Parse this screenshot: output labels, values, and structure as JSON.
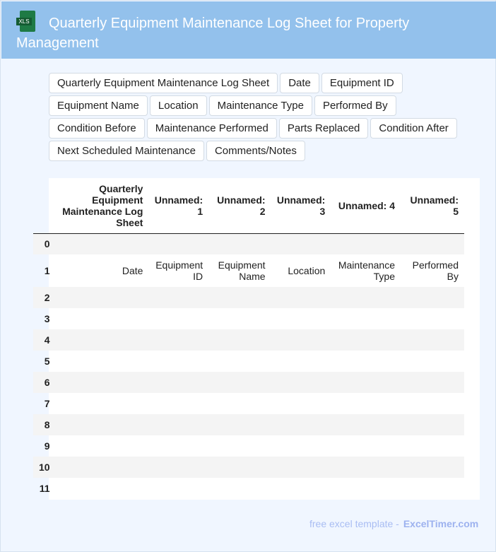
{
  "header": {
    "title": "Quarterly Equipment Maintenance Log Sheet for Property Management",
    "icon": "xls-file-icon",
    "icon_label": "XLS"
  },
  "tags": [
    "Quarterly Equipment Maintenance Log Sheet",
    "Date",
    "Equipment ID",
    "Equipment Name",
    "Location",
    "Maintenance Type",
    "Performed By",
    "Condition Before",
    "Maintenance Performed",
    "Parts Replaced",
    "Condition After",
    "Next Scheduled Maintenance",
    "Comments/Notes"
  ],
  "table": {
    "columns": [
      "",
      "Quarterly Equipment Maintenance Log Sheet",
      "Unnamed: 1",
      "Unnamed: 2",
      "Unnamed: 3",
      "Unnamed: 4",
      "Unnamed: 5"
    ],
    "rows": [
      [
        "0",
        "",
        "",
        "",
        "",
        "",
        ""
      ],
      [
        "1",
        "Date",
        "Equipment ID",
        "Equipment Name",
        "Location",
        "Maintenance Type",
        "Performed By"
      ],
      [
        "2",
        "",
        "",
        "",
        "",
        "",
        ""
      ],
      [
        "3",
        "",
        "",
        "",
        "",
        "",
        ""
      ],
      [
        "4",
        "",
        "",
        "",
        "",
        "",
        ""
      ],
      [
        "5",
        "",
        "",
        "",
        "",
        "",
        ""
      ],
      [
        "6",
        "",
        "",
        "",
        "",
        "",
        ""
      ],
      [
        "7",
        "",
        "",
        "",
        "",
        "",
        ""
      ],
      [
        "8",
        "",
        "",
        "",
        "",
        "",
        ""
      ],
      [
        "9",
        "",
        "",
        "",
        "",
        "",
        ""
      ],
      [
        "10",
        "",
        "",
        "",
        "",
        "",
        ""
      ],
      [
        "11",
        "",
        "",
        "",
        "",
        "",
        ""
      ]
    ]
  },
  "footer": {
    "text": "free excel template -",
    "brand": "ExcelTimer.com"
  }
}
